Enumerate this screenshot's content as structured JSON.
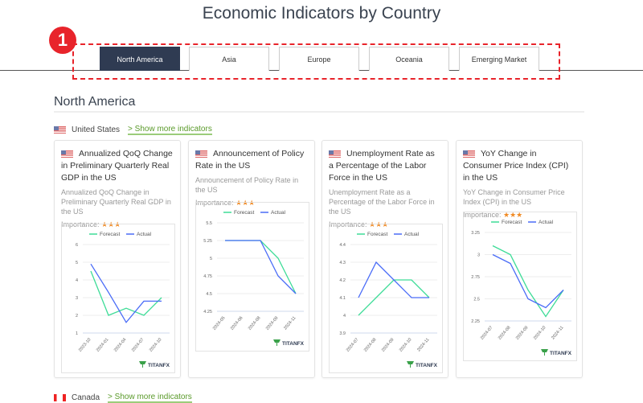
{
  "page": {
    "title": "Economic Indicators by Country",
    "badge": "1"
  },
  "tabs": [
    {
      "label": "North America",
      "active": true
    },
    {
      "label": "Asia"
    },
    {
      "label": "Europe"
    },
    {
      "label": "Oceania"
    },
    {
      "label": "Emerging Market"
    }
  ],
  "section": {
    "title": "North America"
  },
  "countries": [
    {
      "name": "United States",
      "more": "> Show more indicators"
    },
    {
      "name": "Canada",
      "more": "> Show more indicators"
    }
  ],
  "colors": {
    "forecast": "#3ddc97",
    "actual": "#4a6cf7",
    "stars": "#f08a24",
    "active_tab": "#2f3b52"
  },
  "cards": [
    {
      "title": "Annualized QoQ Change in Preliminary Quarterly Real GDP in the US",
      "desc": "Annualized QoQ Change in Preliminary Quarterly Real GDP in the US",
      "importance_label": "Importance:",
      "stars": "★★★"
    },
    {
      "title": "Announcement of Policy Rate in the US",
      "desc": "Announcement of Policy Rate in the US",
      "importance_label": "Importance:",
      "stars": "★★★"
    },
    {
      "title": "Unemployment Rate as a Percentage of the Labor Force in the US",
      "desc": "Unemployment Rate as a Percentage of the Labor Force in the US",
      "importance_label": "Importance:",
      "stars": "★★★"
    },
    {
      "title": "YoY Change in Consumer Price Index (CPI) in the US",
      "desc": "YoY Change in Consumer Price Index (CPI) in the US",
      "importance_label": "Importance:",
      "stars": "★★★"
    }
  ],
  "logo": "TITANFX",
  "chart_data": [
    {
      "type": "line",
      "categories": [
        "2023-10",
        "2024-01",
        "2024-04",
        "2024-07",
        "2024-10"
      ],
      "ylim": [
        1,
        6
      ],
      "yticks": [
        1,
        2,
        3,
        4,
        5,
        6
      ],
      "legend": "top",
      "series": [
        {
          "name": "Forecast",
          "values": [
            4.5,
            2,
            2.4,
            2,
            3
          ]
        },
        {
          "name": "Actual",
          "values": [
            4.9,
            3.3,
            1.6,
            2.8,
            2.8
          ]
        }
      ]
    },
    {
      "type": "line",
      "categories": [
        "2024-05",
        "2024-06",
        "2024-08",
        "2024-09",
        "2024-11"
      ],
      "ylim": [
        4.25,
        5.5
      ],
      "yticks": [
        4.25,
        4.5,
        4.75,
        5,
        5.25,
        5.5
      ],
      "legend": "top",
      "series": [
        {
          "name": "Forecast",
          "values": [
            5.25,
            5.25,
            5.25,
            5,
            4.5
          ]
        },
        {
          "name": "Actual",
          "values": [
            5.25,
            5.25,
            5.25,
            4.75,
            4.5
          ]
        }
      ]
    },
    {
      "type": "line",
      "categories": [
        "2024-07",
        "2024-08",
        "2024-09",
        "2024-10",
        "2024-11"
      ],
      "ylim": [
        3.9,
        4.4
      ],
      "yticks": [
        3.9,
        4,
        4.1,
        4.2,
        4.3,
        4.4
      ],
      "legend": "top",
      "series": [
        {
          "name": "Forecast",
          "values": [
            4.0,
            4.1,
            4.2,
            4.2,
            4.1
          ]
        },
        {
          "name": "Actual",
          "values": [
            4.1,
            4.3,
            4.2,
            4.1,
            4.1
          ]
        }
      ]
    },
    {
      "type": "line",
      "categories": [
        "2024-07",
        "2024-08",
        "2024-09",
        "2024-10",
        "2024-11"
      ],
      "ylim": [
        2.25,
        3.25
      ],
      "yticks": [
        2.25,
        2.5,
        2.75,
        3,
        3.25
      ],
      "legend": "top",
      "series": [
        {
          "name": "Forecast",
          "values": [
            3.1,
            3.0,
            2.6,
            2.3,
            2.6
          ]
        },
        {
          "name": "Actual",
          "values": [
            3.0,
            2.9,
            2.5,
            2.4,
            2.6
          ]
        }
      ]
    }
  ]
}
